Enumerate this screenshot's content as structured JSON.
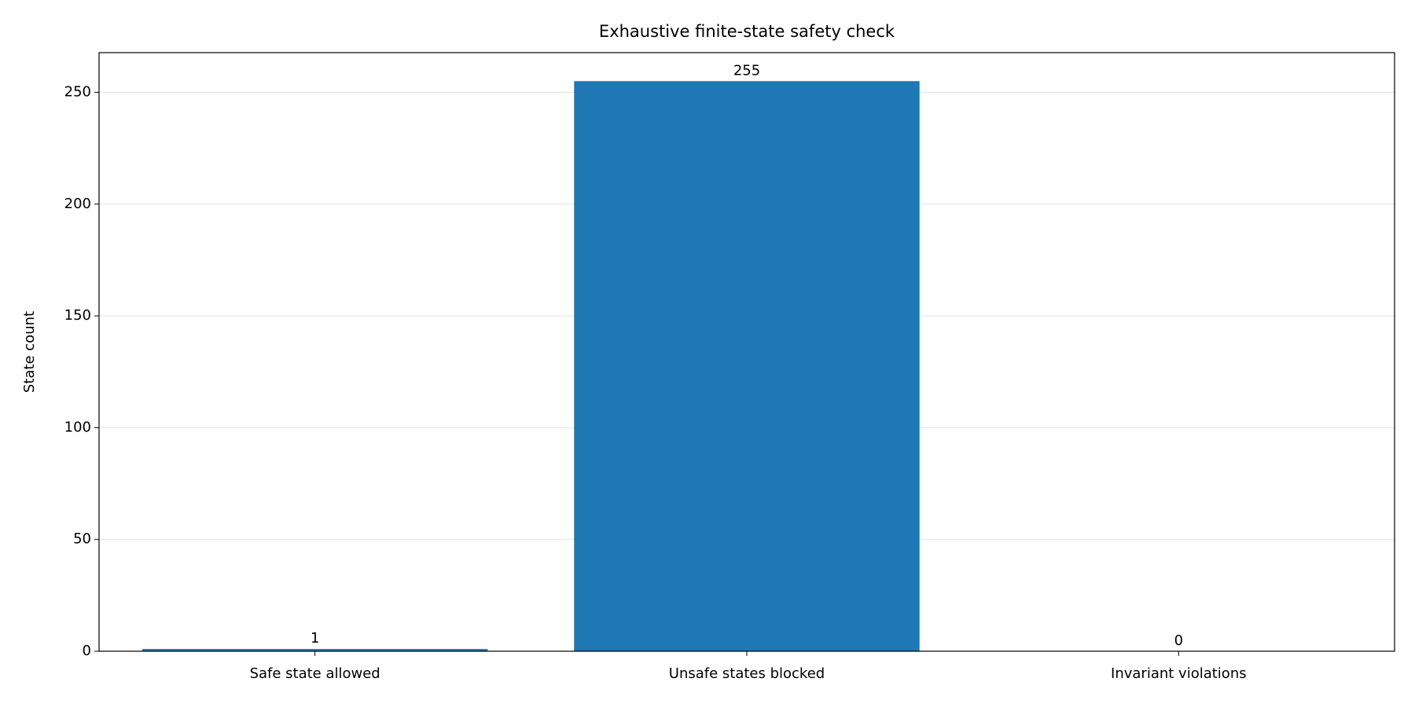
{
  "chart_data": {
    "type": "bar",
    "title": "Exhaustive finite-state safety check",
    "y_label": "State count",
    "categories": [
      "Safe state allowed",
      "Unsafe states blocked",
      "Invariant violations"
    ],
    "values": [
      1,
      255,
      0
    ],
    "color": "#1f77b4",
    "ylim": [
      0,
      267.75
    ],
    "yticks": [
      0,
      50,
      100,
      150,
      200,
      250
    ],
    "grid": true
  }
}
